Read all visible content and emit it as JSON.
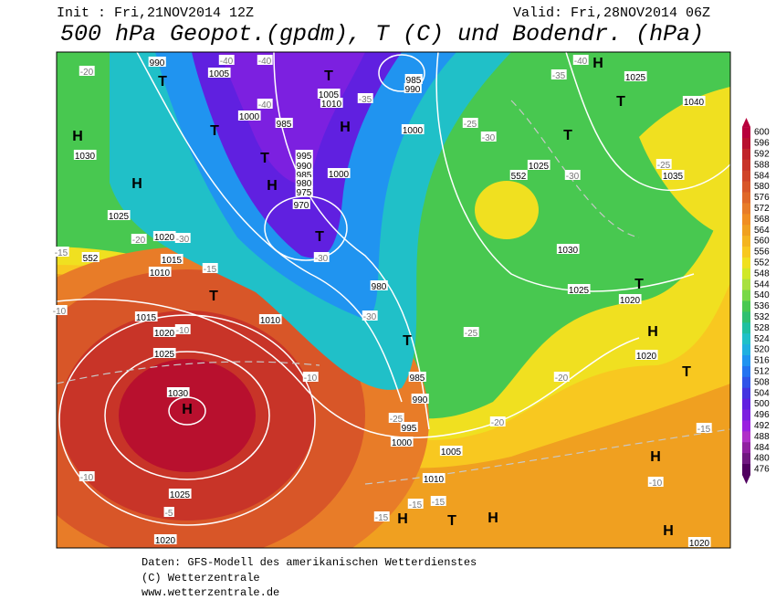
{
  "header": {
    "init": "Init : Fri,21NOV2014 12Z",
    "valid": "Valid: Fri,28NOV2014 06Z",
    "title": "500 hPa Geopot.(gpdm), T (C) und Bodendr. (hPa)"
  },
  "legend": {
    "ticks": [
      600,
      596,
      592,
      588,
      584,
      580,
      576,
      572,
      568,
      564,
      560,
      556,
      552,
      548,
      544,
      540,
      536,
      532,
      528,
      524,
      520,
      516,
      512,
      508,
      504,
      500,
      496,
      492,
      488,
      484,
      480,
      476
    ],
    "colors": [
      "#b8003c",
      "#b8102e",
      "#c0242a",
      "#c83428",
      "#d04428",
      "#d85628",
      "#e06828",
      "#e87c28",
      "#f08e22",
      "#f0a020",
      "#f4b420",
      "#f8c820",
      "#f0e020",
      "#d0e828",
      "#a8e040",
      "#78d848",
      "#48c850",
      "#30c070",
      "#20c0a0",
      "#20c0c8",
      "#20b0e0",
      "#2094f0",
      "#2474f0",
      "#3054e8",
      "#4434e0",
      "#6020e0",
      "#7c20e0",
      "#9a20e0",
      "#b030c8",
      "#9020a0",
      "#701880",
      "#500060"
    ]
  },
  "map": {
    "labels": [
      "H",
      "T",
      "H",
      "H",
      "T",
      "T",
      "H",
      "T",
      "H",
      "T",
      "T",
      "T",
      "T",
      "T",
      "H",
      "H",
      "T",
      "H",
      "H",
      "H",
      "T",
      "H",
      "T",
      "990",
      "1005",
      "1000",
      "985",
      "995",
      "990",
      "985",
      "980",
      "975",
      "970",
      "1000",
      "1005",
      "1010",
      "985",
      "990",
      "1000",
      "1030",
      "1025",
      "1020",
      "1015",
      "1010",
      "1015",
      "1020",
      "1025",
      "1030",
      "1025",
      "1020",
      "1010",
      "980",
      "985",
      "990",
      "995",
      "1000",
      "1005",
      "1010",
      "1025",
      "1030",
      "1025",
      "1020",
      "1020",
      "1035",
      "1040",
      "1025",
      "1020",
      "-20",
      "-40",
      "-40",
      "-40",
      "-35",
      "-25",
      "-30",
      "-35",
      "-40",
      "-30",
      "-25",
      "-30",
      "-15",
      "-20",
      "-30",
      "-15",
      "-10",
      "-10",
      "-10",
      "-30",
      "-25",
      "-20",
      "-20",
      "-25",
      "-15",
      "-10",
      "-15",
      "-15",
      "-15",
      "-10",
      "-5",
      "552",
      "552"
    ]
  },
  "footer": {
    "source": "Daten: GFS-Modell des amerikanischen Wetterdienstes",
    "copyright": "(C) Wetterzentrale",
    "url": "www.wetterzentrale.de"
  }
}
